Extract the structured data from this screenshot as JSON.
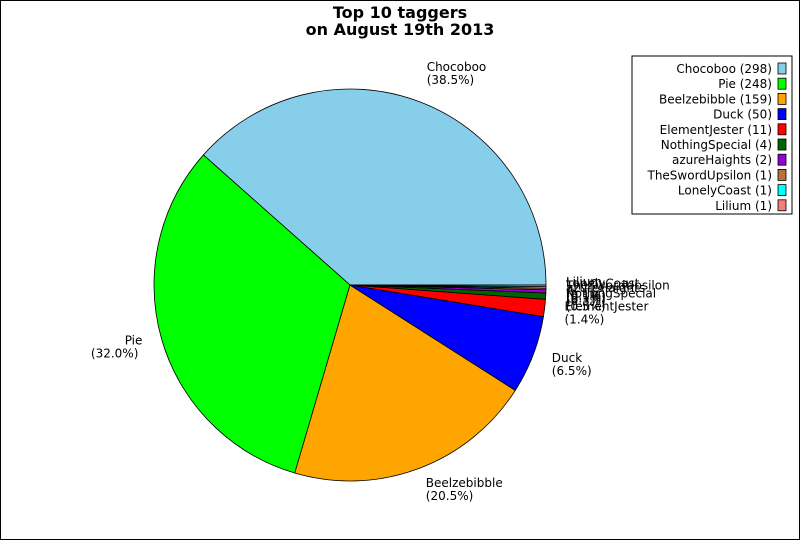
{
  "chart_data": {
    "type": "pie",
    "title": [
      "Top 10 taggers",
      "on August 19th 2013"
    ],
    "legend_position": "top-right",
    "slices": [
      {
        "name": "Chocoboo",
        "value": 298,
        "percent": "38.5%",
        "color": "#87ceeb"
      },
      {
        "name": "Pie",
        "value": 248,
        "percent": "32.0%",
        "color": "#00ff00"
      },
      {
        "name": "Beelzebibble",
        "value": 159,
        "percent": "20.5%",
        "color": "#ffa500"
      },
      {
        "name": "Duck",
        "value": 50,
        "percent": "6.5%",
        "color": "#0000ff"
      },
      {
        "name": "ElementJester",
        "value": 11,
        "percent": "1.4%",
        "color": "#ff0000"
      },
      {
        "name": "NothingSpecial",
        "value": 4,
        "percent": "0.5%",
        "color": "#006400"
      },
      {
        "name": "azureHaights",
        "value": 2,
        "percent": "0.3%",
        "color": "#9400d3"
      },
      {
        "name": "TheSwordUpsilon",
        "value": 1,
        "percent": "0.1%",
        "color": "#b8733c"
      },
      {
        "name": "LonelyCoast",
        "value": 1,
        "percent": "0.1%",
        "color": "#00ffff"
      },
      {
        "name": "Lilium",
        "value": 1,
        "percent": "0.1%",
        "color": "#f08080"
      }
    ]
  }
}
